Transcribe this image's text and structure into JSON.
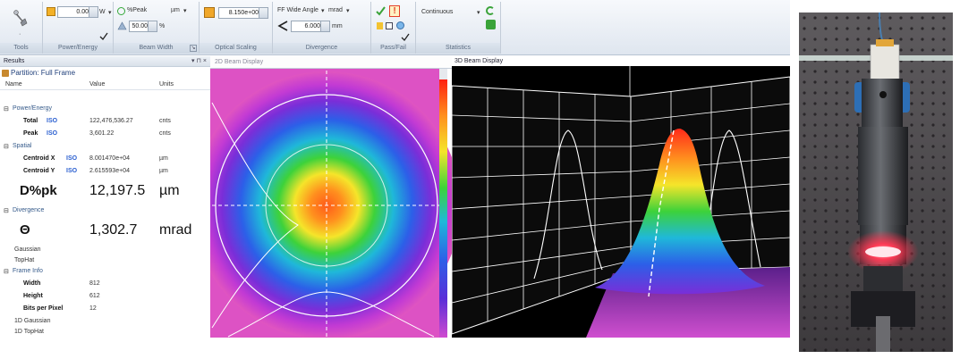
{
  "ribbon": {
    "power_value": "0.00",
    "power_unit": "W",
    "beam_width_mode": "%Peak",
    "beam_width_unit": "µm",
    "beam_width_value": "50.00",
    "beam_width_pct": "%",
    "optical_scaling_value": "8.150e+00",
    "divergence_mode": "FF Wide Angle",
    "divergence_unit": "mrad",
    "divergence_value": "6.000",
    "divergence_distance_unit": "mm",
    "statistics_mode": "Continuous",
    "groups": {
      "tools": "Tools",
      "power_energy": "Power/Energy",
      "beam_width": "Beam Width",
      "optical_scaling": "Optical Scaling",
      "divergence": "Divergence",
      "pass_fail": "Pass/Fail",
      "statistics": "Statistics"
    }
  },
  "results": {
    "title": "Results",
    "pin": "▾ ⊓ ×",
    "partition": "Partition: Full Frame",
    "columns": {
      "name": "Name",
      "value": "Value",
      "units": "Units"
    },
    "rows": [
      {
        "label": "Power/Energy",
        "type": "cat"
      },
      {
        "label": "Total",
        "iso": "ISO",
        "value": "122,476,536.27",
        "unit": "cnts"
      },
      {
        "label": "Peak",
        "iso": "ISO",
        "value": "3,601.22",
        "unit": "cnts"
      },
      {
        "label": "Spatial",
        "type": "cat"
      },
      {
        "label": "Centroid X",
        "iso": "ISO",
        "value": "8.001470e+04",
        "unit": "µm"
      },
      {
        "label": "Centroid Y",
        "iso": "ISO",
        "value": "2.615593e+04",
        "unit": "µm"
      },
      {
        "label": "D%pk",
        "value": "12,197.5",
        "unit": "µm",
        "type": "big"
      },
      {
        "label": "Divergence",
        "type": "cat"
      },
      {
        "label": "Θ",
        "value": "1,302.7",
        "unit": "mrad",
        "type": "big"
      },
      {
        "label": "Gaussian",
        "type": "sub"
      },
      {
        "label": "TopHat",
        "type": "sub"
      },
      {
        "label": "Frame Info",
        "type": "cat"
      },
      {
        "label": "Width",
        "value": "812"
      },
      {
        "label": "Height",
        "value": "612"
      },
      {
        "label": "Bits per Pixel",
        "value": "12"
      },
      {
        "label": "1D Gaussian",
        "type": "sub"
      },
      {
        "label": "1D TopHat",
        "type": "sub"
      }
    ]
  },
  "display2d": {
    "title": "2D Beam Display"
  },
  "display3d": {
    "title": "3D Beam Display"
  },
  "colors": {
    "ribbon_bg": "#e4eaf2",
    "iso_blue": "#2a5fd0",
    "pass_check": "#3aa339",
    "fail_warning": "#e4402a",
    "beam_red": "#ff3040"
  }
}
